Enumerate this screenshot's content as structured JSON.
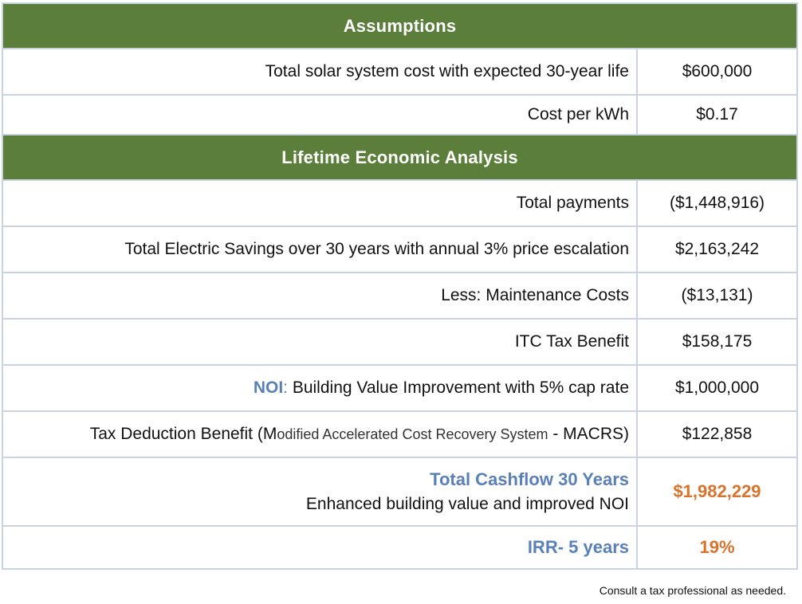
{
  "sections": {
    "assumptions": "Assumptions",
    "analysis": "Lifetime Economic Analysis"
  },
  "rows": {
    "system_cost": {
      "label": "Total solar system cost with expected 30-year life",
      "value": "$600,000"
    },
    "cost_per_kwh": {
      "label": "Cost per kWh",
      "value": "$0.17"
    },
    "total_payments": {
      "label": "Total payments",
      "value": "($1,448,916)"
    },
    "electric_savings": {
      "label": "Total Electric Savings over 30 years with annual 3% price escalation",
      "value": "$2,163,242"
    },
    "maintenance": {
      "label": "Less: Maintenance Costs",
      "value": "($13,131)"
    },
    "itc": {
      "label": "ITC Tax Benefit",
      "value": "$158,175"
    },
    "noi": {
      "prefix": "NOI",
      "colon": ":",
      "label": " Building Value Improvement with 5% cap rate",
      "value": "$1,000,000"
    },
    "macrs": {
      "label_main": "Tax Deduction Benefit (",
      "m": "M",
      "small": "odified Accelerated Cost Recovery System",
      "suffix": " - MACRS)",
      "value": "$122,858"
    },
    "cashflow": {
      "title": "Total Cashflow 30 Years",
      "subtitle": "Enhanced building value and improved NOI",
      "value": "$1,982,229"
    },
    "irr": {
      "label": "IRR- 5 years",
      "value": "19%"
    }
  },
  "footnote": "Consult a tax professional as needed.",
  "colors": {
    "header_green": "#5b7f3a",
    "accent_blue": "#5a80b8",
    "accent_orange": "#d9722b",
    "grid": "#c9d3e3"
  }
}
